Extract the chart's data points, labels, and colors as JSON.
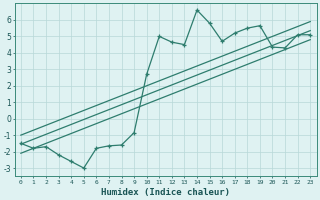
{
  "xlabel": "Humidex (Indice chaleur)",
  "x": [
    0,
    1,
    2,
    3,
    4,
    5,
    6,
    7,
    8,
    9,
    10,
    11,
    12,
    13,
    14,
    15,
    16,
    17,
    18,
    19,
    20,
    21,
    22,
    23
  ],
  "line_main": [
    -1.5,
    -1.8,
    -1.7,
    -2.2,
    -2.6,
    -3.0,
    -1.8,
    -1.65,
    -1.6,
    -0.85,
    2.7,
    5.0,
    4.65,
    4.5,
    6.6,
    5.8,
    4.7,
    5.2,
    5.5,
    5.65,
    4.35,
    4.3,
    5.1,
    5.1
  ],
  "line_reg1": [
    -1.55,
    -1.25,
    -0.95,
    -0.65,
    -0.35,
    -0.05,
    0.25,
    0.55,
    0.85,
    1.15,
    1.45,
    1.75,
    2.05,
    2.35,
    2.65,
    2.95,
    3.25,
    3.55,
    3.85,
    4.15,
    4.45,
    4.75,
    5.05,
    5.35
  ],
  "line_reg2": [
    -2.1,
    -1.8,
    -1.5,
    -1.2,
    -0.9,
    -0.6,
    -0.3,
    0.0,
    0.3,
    0.6,
    0.9,
    1.2,
    1.5,
    1.8,
    2.1,
    2.4,
    2.7,
    3.0,
    3.3,
    3.6,
    3.9,
    4.2,
    4.5,
    4.8
  ],
  "line_reg3": [
    -1.0,
    -0.7,
    -0.4,
    -0.1,
    0.2,
    0.5,
    0.8,
    1.1,
    1.4,
    1.7,
    2.0,
    2.3,
    2.6,
    2.9,
    3.2,
    3.5,
    3.8,
    4.1,
    4.4,
    4.7,
    5.0,
    5.3,
    5.6,
    5.9
  ],
  "color_main": "#2e7d6e",
  "bg_color": "#dff2f2",
  "grid_color": "#b8d8d8",
  "ylim": [
    -3.5,
    7.0
  ],
  "yticks": [
    -3,
    -2,
    -1,
    0,
    1,
    2,
    3,
    4,
    5,
    6
  ],
  "xticks": [
    0,
    1,
    2,
    3,
    4,
    5,
    6,
    7,
    8,
    9,
    10,
    11,
    12,
    13,
    14,
    15,
    16,
    17,
    18,
    19,
    20,
    21,
    22,
    23
  ]
}
